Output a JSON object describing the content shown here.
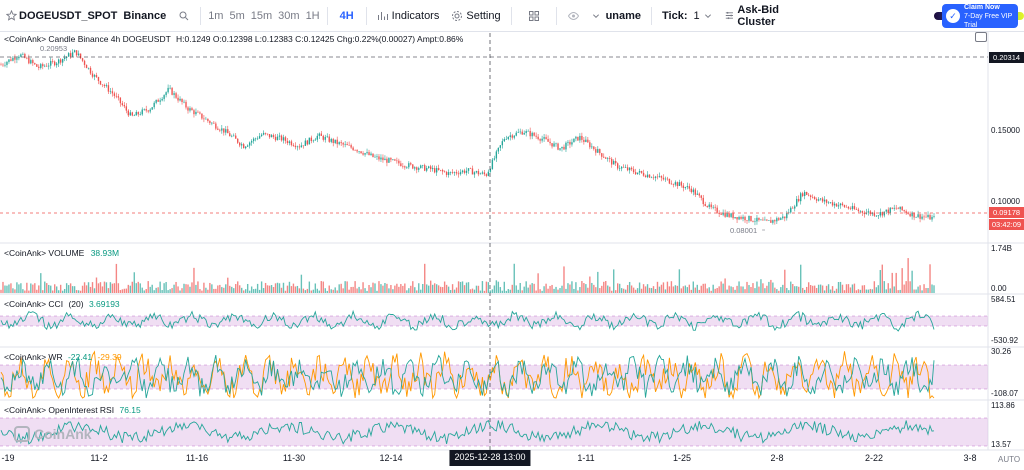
{
  "toolbar": {
    "star_icon": "star-icon",
    "symbol": "DOGEUSDT_SPOT",
    "exchange": "Binance",
    "timeframes": [
      "1m",
      "5m",
      "15m",
      "30m",
      "1H",
      "4H"
    ],
    "active_timeframe": "4H",
    "indicators_label": "Indicators",
    "setting_label": "Setting",
    "user_label": "uname",
    "tick_label": "Tick:",
    "tick_value": "1",
    "cluster_label": "Ask-Bid Cluster",
    "claim_line1": "Claim Now",
    "claim_line2": "7-Day Free VIP Trial"
  },
  "main": {
    "legend_prefix": "<CoinAnk> Candle  Binance 4h DOGEUSDT",
    "ohlc": "H:0.1249  O:0.12398  L:0.12383  C:0.12425  Chg:0.22%(0.00027)  Ampt:0.86%",
    "high_label": "0.20953",
    "low_label": "0.08001",
    "price_axis": [
      "0.15000",
      "0.10000"
    ],
    "price_crosshair": "0.20314",
    "price_current": "0.09178",
    "countdown": "03:42:09"
  },
  "volume": {
    "legend": "<CoinAnk> VOLUME",
    "value": "38.93M",
    "axis_top": "1.74B",
    "axis_bottom": "0.00"
  },
  "cci": {
    "legend": "<CoinAnk> CCI",
    "period": "(20)",
    "value": "3.69193",
    "axis_top": "584.51",
    "axis_bottom": "-530.92"
  },
  "wr": {
    "legend": "<CoinAnk> WR",
    "value1": "-22.41",
    "value2": "-29.39",
    "axis_top": "30.26",
    "axis_bottom": "-108.07"
  },
  "oirsi": {
    "legend": "<CoinAnk> OpenInterest RSI",
    "value": "76.15",
    "axis_top": "113.86",
    "axis_bottom": "13.57"
  },
  "time_axis": [
    "-19",
    "11-2",
    "11-16",
    "11-30",
    "12-14",
    "1-11",
    "1-25",
    "2-8",
    "2-22",
    "3-8"
  ],
  "time_cursor": "2025-12-28 13:00",
  "auto_label": "AUTO",
  "watermark": "CoinAnk",
  "colors": {
    "up": "#26a69a",
    "down": "#ef5350",
    "accent": "#2962ff",
    "current": "#ef5350",
    "band": "#e1bee7"
  },
  "chart_data": {
    "type": "candlestick",
    "symbol": "DOGEUSDT",
    "interval": "4h",
    "trend": [
      [
        0,
        0.198
      ],
      [
        2,
        0.205
      ],
      [
        4,
        0.196
      ],
      [
        6,
        0.2
      ],
      [
        8,
        0.207
      ],
      [
        10,
        0.19
      ],
      [
        12,
        0.178
      ],
      [
        14,
        0.162
      ],
      [
        16,
        0.168
      ],
      [
        18,
        0.181
      ],
      [
        20,
        0.168
      ],
      [
        22,
        0.16
      ],
      [
        24,
        0.152
      ],
      [
        26,
        0.142
      ],
      [
        28,
        0.15
      ],
      [
        30,
        0.147
      ],
      [
        32,
        0.142
      ],
      [
        34,
        0.149
      ],
      [
        36,
        0.144
      ],
      [
        38,
        0.14
      ],
      [
        40,
        0.134
      ],
      [
        42,
        0.131
      ],
      [
        44,
        0.128
      ],
      [
        46,
        0.126
      ],
      [
        48,
        0.123
      ],
      [
        50,
        0.125
      ],
      [
        52,
        0.122
      ],
      [
        54,
        0.148
      ],
      [
        56,
        0.152
      ],
      [
        58,
        0.147
      ],
      [
        60,
        0.14
      ],
      [
        62,
        0.148
      ],
      [
        64,
        0.138
      ],
      [
        66,
        0.128
      ],
      [
        68,
        0.124
      ],
      [
        70,
        0.121
      ],
      [
        72,
        0.117
      ],
      [
        74,
        0.112
      ],
      [
        76,
        0.099
      ],
      [
        78,
        0.094
      ],
      [
        80,
        0.092
      ],
      [
        82,
        0.089
      ],
      [
        84,
        0.093
      ],
      [
        86,
        0.11
      ],
      [
        88,
        0.104
      ],
      [
        90,
        0.101
      ],
      [
        92,
        0.097
      ],
      [
        94,
        0.095
      ],
      [
        96,
        0.099
      ],
      [
        98,
        0.094
      ],
      [
        100,
        0.092
      ]
    ],
    "ylim": [
      0.075,
      0.215
    ]
  }
}
